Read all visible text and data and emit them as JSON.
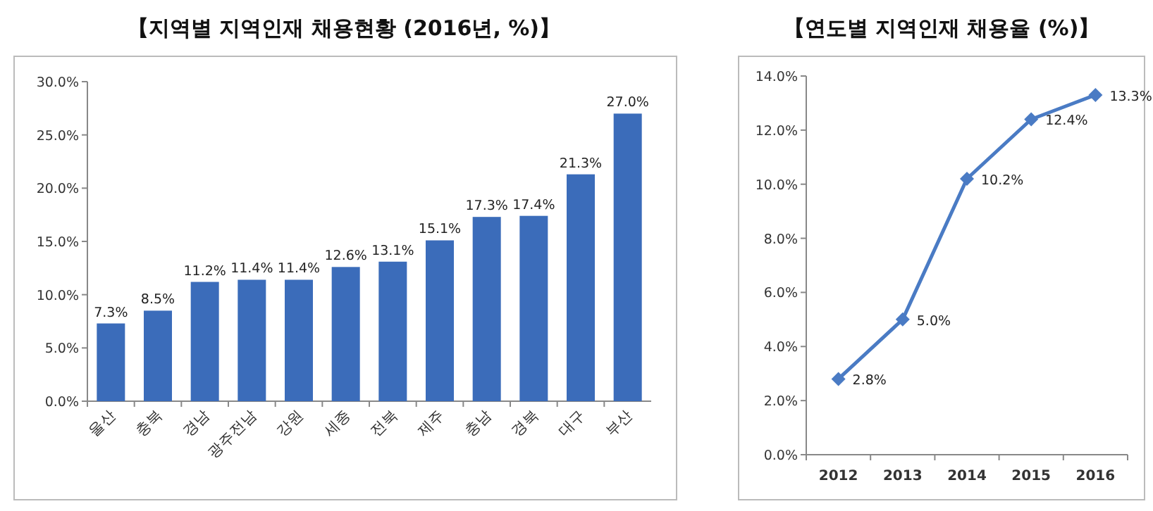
{
  "chart_data": [
    {
      "type": "bar",
      "title": "【지역별 지역인재 채용현황 (2016년, %)】",
      "categories": [
        "울산",
        "충북",
        "경남",
        "광주전남",
        "강원",
        "세종",
        "전북",
        "제주",
        "충남",
        "경북",
        "대구",
        "부산"
      ],
      "values": [
        7.3,
        8.5,
        11.2,
        11.4,
        11.4,
        12.6,
        13.1,
        15.1,
        17.3,
        17.4,
        21.3,
        27.0
      ],
      "value_labels": [
        "7.3%",
        "8.5%",
        "11.2%",
        "11.4%",
        "11.4%",
        "12.6%",
        "13.1%",
        "15.1%",
        "17.3%",
        "17.4%",
        "21.3%",
        "27.0%"
      ],
      "color": "#3b6cba",
      "ylim": [
        0,
        30
      ],
      "yticks": [
        {
          "value": 0,
          "label": "0.0%"
        },
        {
          "value": 5,
          "label": "5.0%"
        },
        {
          "value": 10,
          "label": "10.0%"
        },
        {
          "value": 15,
          "label": "15.0%"
        },
        {
          "value": 20,
          "label": "20.0%"
        },
        {
          "value": 25,
          "label": "25.0%"
        },
        {
          "value": 30,
          "label": "30.0%"
        }
      ]
    },
    {
      "type": "line",
      "title": "【연도별 지역인재 채용율 (%)】",
      "categories": [
        "2012",
        "2013",
        "2014",
        "2015",
        "2016"
      ],
      "values": [
        2.8,
        5.0,
        10.2,
        12.4,
        13.3
      ],
      "value_labels": [
        "2.8%",
        "5.0%",
        "10.2%",
        "12.4%",
        "13.3%"
      ],
      "color": "#4a7bc4",
      "marker": "diamond",
      "ylim": [
        0,
        14
      ],
      "yticks": [
        {
          "value": 0,
          "label": "0.0%"
        },
        {
          "value": 2,
          "label": "2.0%"
        },
        {
          "value": 4,
          "label": "4.0%"
        },
        {
          "value": 6,
          "label": "6.0%"
        },
        {
          "value": 8,
          "label": "8.0%"
        },
        {
          "value": 10,
          "label": "10.0%"
        },
        {
          "value": 12,
          "label": "12.0%"
        },
        {
          "value": 14,
          "label": "14.0%"
        }
      ]
    }
  ]
}
